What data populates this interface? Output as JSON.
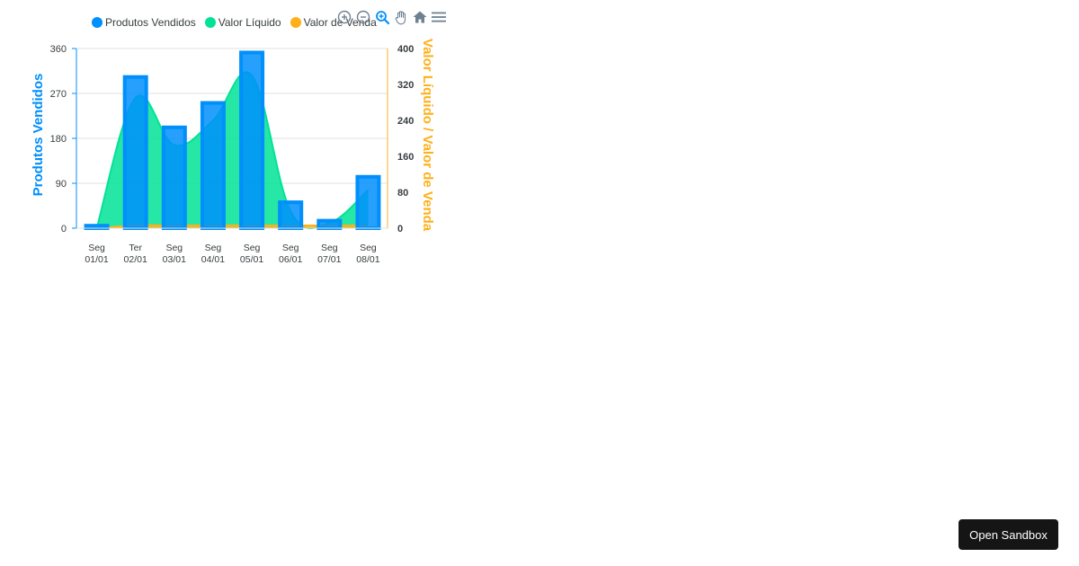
{
  "legend": {
    "items": [
      {
        "name": "Produtos Vendidos",
        "color": "#008ffb"
      },
      {
        "name": "Valor Líquido",
        "color": "#00e396"
      },
      {
        "name": "Valor de Venda",
        "color": "#feb019"
      }
    ]
  },
  "toolbar": {
    "icons": [
      "zoom-in-icon",
      "zoom-out-icon",
      "zoom-selection-icon",
      "pan-hand-icon",
      "reset-home-icon",
      "menu-icon"
    ]
  },
  "sandbox_button": {
    "label": "Open Sandbox"
  },
  "colors": {
    "blue": "#008ffb",
    "green": "#00e396",
    "orange": "#feb019",
    "grid": "#e0e0e0"
  },
  "chart_data": {
    "type": "bar",
    "categories": [
      [
        "Seg",
        "01/01"
      ],
      [
        "Ter",
        "02/01"
      ],
      [
        "Seg",
        "03/01"
      ],
      [
        "Seg",
        "04/01"
      ],
      [
        "Seg",
        "05/01"
      ],
      [
        "Seg",
        "06/01"
      ],
      [
        "Seg",
        "07/01"
      ],
      [
        "Seg",
        "08/01"
      ]
    ],
    "series": [
      {
        "name": "Produtos Vendidos",
        "type": "column",
        "axis": "left",
        "values": [
          5,
          303,
          202,
          251,
          352,
          52,
          15,
          103
        ]
      },
      {
        "name": "Valor Líquido",
        "type": "area",
        "axis": "right",
        "values": [
          0,
          290,
          185,
          240,
          340,
          38,
          12,
          85
        ]
      },
      {
        "name": "Valor de Venda",
        "type": "area",
        "axis": "right",
        "values": [
          0,
          6,
          6,
          6,
          6,
          6,
          6,
          6
        ]
      }
    ],
    "y_left": {
      "label": "Produtos Vendidos",
      "min": 0,
      "max": 360,
      "ticks": [
        "0",
        "90",
        "180",
        "270",
        "360"
      ]
    },
    "y_right": {
      "label": "Valor Líquido / Valor de Venda",
      "min": 0,
      "max": 400,
      "ticks": [
        "0",
        "80",
        "160",
        "240",
        "320",
        "400"
      ]
    },
    "grid": true,
    "legend_position": "top-left"
  }
}
